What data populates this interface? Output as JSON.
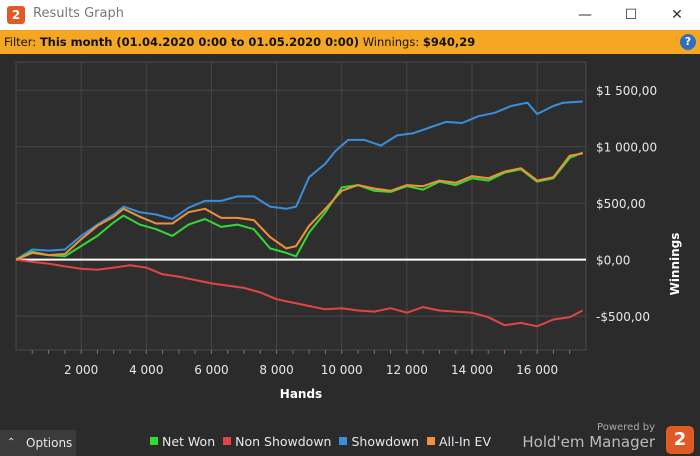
{
  "window": {
    "title": "Results Graph",
    "app_icon_text": "2"
  },
  "filter": {
    "label": "Filter:",
    "value": "This month (01.04.2020 0:00 to 01.05.2020 0:00)",
    "winnings_label": "Winnings:",
    "winnings_value": "$940,29",
    "help_icon": "question-icon"
  },
  "chart_data": {
    "type": "line",
    "xlabel": "Hands",
    "ylabel": "Winnings",
    "xlim": [
      0,
      17500
    ],
    "ylim": [
      -800,
      1750
    ],
    "x_ticks": [
      2000,
      4000,
      6000,
      8000,
      10000,
      12000,
      14000,
      16000
    ],
    "x_tick_labels": [
      "2 000",
      "4 000",
      "6 000",
      "8 000",
      "10 000",
      "12 000",
      "14 000",
      "16 000"
    ],
    "y_ticks": [
      -500,
      0,
      500,
      1000,
      1500
    ],
    "y_tick_labels": [
      "-$500,00",
      "$0,00",
      "$500,00",
      "$1 000,00",
      "$1 500,00"
    ],
    "grid": true,
    "legend_position": "bottom",
    "series": [
      {
        "name": "Net Won",
        "color": "#34d934",
        "x": [
          0,
          500,
          1000,
          1500,
          2000,
          2500,
          3000,
          3300,
          3800,
          4300,
          4800,
          5300,
          5800,
          6300,
          6800,
          7300,
          7800,
          8300,
          8600,
          9000,
          9500,
          10000,
          10500,
          11000,
          11500,
          12000,
          12500,
          13000,
          13500,
          14000,
          14500,
          15000,
          15500,
          16000,
          16500,
          17000,
          17400
        ],
        "values": [
          0,
          70,
          40,
          30,
          120,
          210,
          330,
          390,
          310,
          270,
          210,
          310,
          360,
          290,
          310,
          270,
          100,
          60,
          30,
          240,
          420,
          640,
          660,
          610,
          600,
          650,
          620,
          690,
          660,
          720,
          700,
          770,
          800,
          690,
          720,
          900,
          950
        ]
      },
      {
        "name": "Non Showdown",
        "color": "#e24545",
        "x": [
          0,
          500,
          1000,
          1500,
          2000,
          2500,
          3000,
          3500,
          4000,
          4500,
          5000,
          5500,
          6000,
          6500,
          7000,
          7500,
          8000,
          8500,
          9000,
          9500,
          10000,
          10500,
          11000,
          11500,
          12000,
          12500,
          13000,
          13500,
          14000,
          14500,
          15000,
          15500,
          16000,
          16500,
          17000,
          17400
        ],
        "values": [
          0,
          -20,
          -35,
          -60,
          -80,
          -90,
          -70,
          -50,
          -70,
          -130,
          -150,
          -180,
          -210,
          -230,
          -250,
          -290,
          -350,
          -380,
          -410,
          -440,
          -430,
          -450,
          -460,
          -430,
          -470,
          -420,
          -450,
          -460,
          -470,
          -510,
          -580,
          -560,
          -590,
          -530,
          -510,
          -450
        ]
      },
      {
        "name": "Showdown",
        "color": "#3a8fdc",
        "x": [
          0,
          500,
          1000,
          1500,
          2000,
          2500,
          3000,
          3300,
          3800,
          4300,
          4800,
          5300,
          5800,
          6300,
          6800,
          7300,
          7800,
          8300,
          8600,
          9000,
          9500,
          9800,
          10200,
          10700,
          11200,
          11700,
          12200,
          12700,
          13200,
          13700,
          14200,
          14700,
          15200,
          15700,
          16000,
          16500,
          16800,
          17400
        ],
        "values": [
          0,
          90,
          80,
          90,
          210,
          310,
          400,
          470,
          420,
          400,
          360,
          460,
          520,
          520,
          560,
          560,
          470,
          450,
          470,
          730,
          850,
          960,
          1060,
          1060,
          1010,
          1100,
          1120,
          1170,
          1220,
          1210,
          1270,
          1300,
          1360,
          1390,
          1290,
          1360,
          1390,
          1400
        ]
      },
      {
        "name": "All-In EV",
        "color": "#f0913a",
        "x": [
          0,
          500,
          1000,
          1500,
          2000,
          2500,
          3000,
          3300,
          3800,
          4300,
          4800,
          5300,
          5800,
          6300,
          6800,
          7300,
          7800,
          8300,
          8600,
          9000,
          9500,
          10000,
          10500,
          11000,
          11500,
          12000,
          12500,
          13000,
          13500,
          14000,
          14500,
          15000,
          15500,
          16000,
          16500,
          17000,
          17400
        ],
        "values": [
          0,
          60,
          40,
          50,
          180,
          300,
          380,
          450,
          380,
          320,
          320,
          420,
          450,
          370,
          370,
          350,
          200,
          100,
          120,
          300,
          450,
          610,
          660,
          630,
          610,
          660,
          650,
          700,
          680,
          740,
          720,
          780,
          810,
          700,
          730,
          920,
          940
        ]
      }
    ]
  },
  "bottom": {
    "options_label": "Options",
    "options_icon": "chevron-up-icon",
    "powered_by": "Powered by",
    "brand": "Hold'em Manager",
    "brand_logo_text": "2"
  }
}
